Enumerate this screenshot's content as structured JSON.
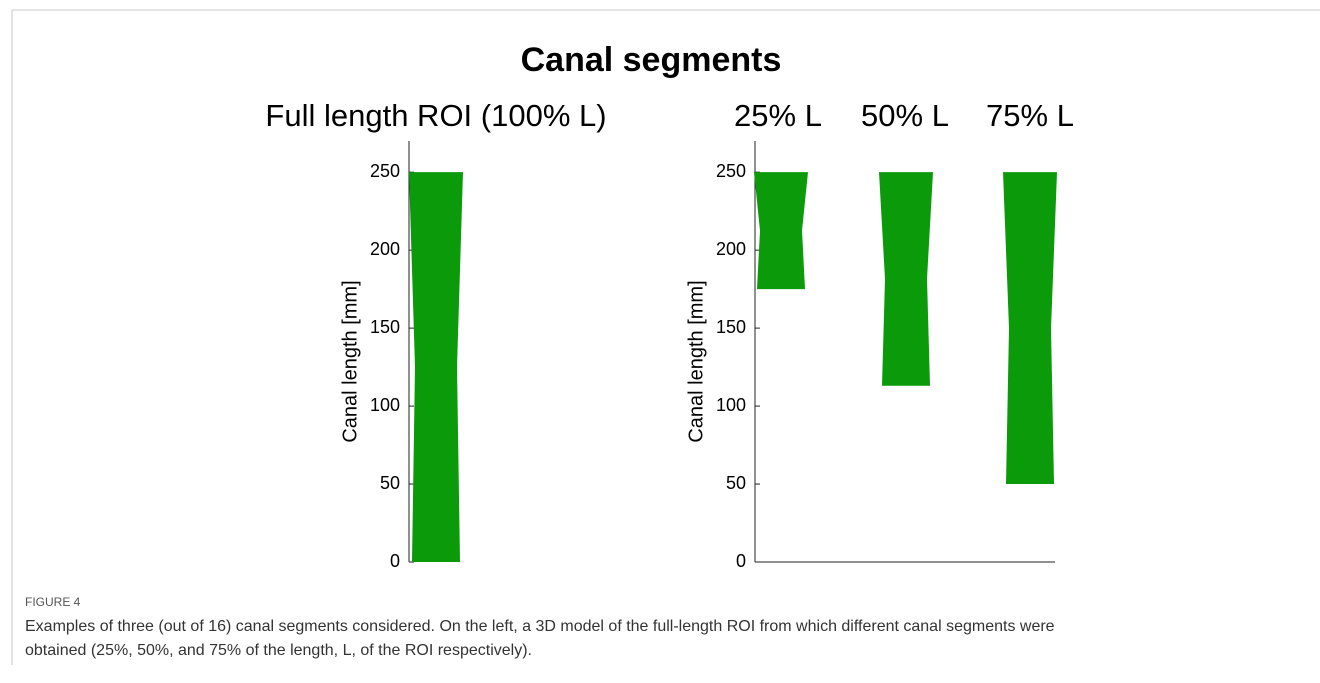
{
  "figure": {
    "title": "Canal segments",
    "panels": [
      {
        "subtitles": [
          "Full length ROI (100% L)"
        ],
        "ylabel": "Canal length [mm]",
        "ylim": [
          0,
          270
        ],
        "yticks": [
          0,
          50,
          100,
          150,
          200,
          250
        ],
        "color": "#0a9a0a",
        "segments": [
          {
            "from": 0,
            "to": 250
          }
        ],
        "bottom_axis": false
      },
      {
        "subtitles": [
          "25% L",
          "50% L",
          "75% L"
        ],
        "ylabel": "Canal length [mm]",
        "ylim": [
          0,
          270
        ],
        "yticks": [
          0,
          50,
          100,
          150,
          200,
          250
        ],
        "color": "#0a9a0a",
        "segments": [
          {
            "from": 175,
            "to": 250
          },
          {
            "from": 113,
            "to": 250
          },
          {
            "from": 50,
            "to": 250
          }
        ],
        "bottom_axis": true
      }
    ]
  },
  "caption": {
    "label": "FIGURE 4",
    "lines": [
      "Examples of three (out of 16) canal segments considered. On the left, a 3D model of the full-length ROI from which different canal segments were",
      "obtained (25%, 50%, and 75% of the length, L, of the ROI respectively)."
    ]
  }
}
